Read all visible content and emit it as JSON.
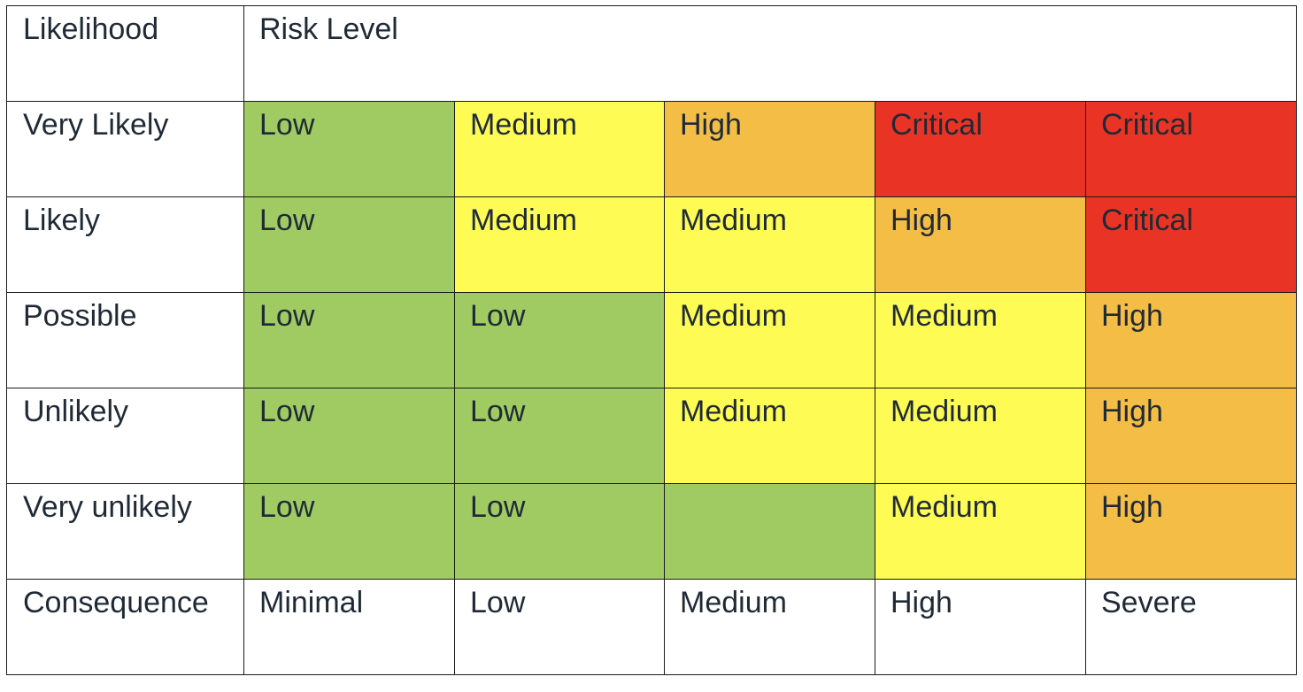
{
  "header": {
    "likelihood_label": "Likelihood",
    "risk_level_label": "Risk Level"
  },
  "colors": {
    "Low": "#a0cb63",
    "Medium": "#fefb55",
    "High": "#f4bd45",
    "Critical": "#e93425",
    "none": "#ffffff"
  },
  "rows": [
    {
      "likelihood": "Very Likely",
      "cells": [
        {
          "text": "Low",
          "level": "Low"
        },
        {
          "text": "Medium",
          "level": "Medium"
        },
        {
          "text": "High",
          "level": "High"
        },
        {
          "text": "Critical",
          "level": "Critical"
        },
        {
          "text": "Critical",
          "level": "Critical"
        }
      ]
    },
    {
      "likelihood": "Likely",
      "cells": [
        {
          "text": "Low",
          "level": "Low"
        },
        {
          "text": "Medium",
          "level": "Medium"
        },
        {
          "text": "Medium",
          "level": "Medium"
        },
        {
          "text": "High",
          "level": "High"
        },
        {
          "text": "Critical",
          "level": "Critical"
        }
      ]
    },
    {
      "likelihood": "Possible",
      "cells": [
        {
          "text": "Low",
          "level": "Low"
        },
        {
          "text": "Low",
          "level": "Low"
        },
        {
          "text": "Medium",
          "level": "Medium"
        },
        {
          "text": "Medium",
          "level": "Medium"
        },
        {
          "text": "High",
          "level": "High"
        }
      ]
    },
    {
      "likelihood": "Unlikely",
      "cells": [
        {
          "text": "Low",
          "level": "Low"
        },
        {
          "text": "Low",
          "level": "Low"
        },
        {
          "text": "Medium",
          "level": "Medium"
        },
        {
          "text": "Medium",
          "level": "Medium"
        },
        {
          "text": "High",
          "level": "High"
        }
      ]
    },
    {
      "likelihood": "Very unlikely",
      "cells": [
        {
          "text": "Low",
          "level": "Low"
        },
        {
          "text": "Low",
          "level": "Low"
        },
        {
          "text": "",
          "level": "Low"
        },
        {
          "text": "Medium",
          "level": "Medium"
        },
        {
          "text": "High",
          "level": "High"
        }
      ]
    }
  ],
  "consequence": {
    "label": "Consequence",
    "values": [
      "Minimal",
      "Low",
      "Medium",
      "High",
      "Severe"
    ]
  }
}
